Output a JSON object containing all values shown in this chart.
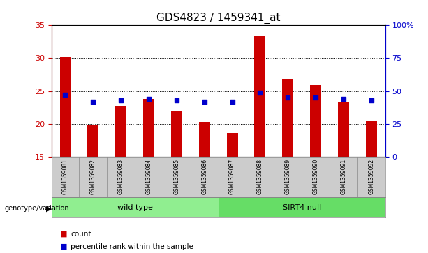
{
  "title": "GDS4823 / 1459341_at",
  "samples": [
    "GSM1359081",
    "GSM1359082",
    "GSM1359083",
    "GSM1359084",
    "GSM1359085",
    "GSM1359086",
    "GSM1359087",
    "GSM1359088",
    "GSM1359089",
    "GSM1359090",
    "GSM1359091",
    "GSM1359092"
  ],
  "count_values": [
    30.2,
    19.9,
    22.7,
    23.8,
    22.0,
    20.3,
    18.6,
    33.4,
    26.9,
    25.9,
    23.4,
    20.5
  ],
  "percentile_values": [
    47,
    42,
    43,
    44,
    43,
    42,
    42,
    49,
    45,
    45,
    44,
    43
  ],
  "y_min": 15,
  "y_max": 35,
  "y_ticks": [
    15,
    20,
    25,
    30,
    35
  ],
  "y2_ticks": [
    0,
    25,
    50,
    75,
    100
  ],
  "bar_color": "#CC0000",
  "dot_color": "#0000CC",
  "bar_bottom": 15,
  "bg_color": "#FFFFFF",
  "plot_bg_color": "#FFFFFF",
  "tick_area_bg": "#CCCCCC",
  "legend_count_label": "count",
  "legend_pct_label": "percentile rank within the sample",
  "ylabel_left_color": "#CC0000",
  "ylabel_right_color": "#0000CC",
  "genotype_label": "genotype/variation",
  "group1_label": "wild type",
  "group2_label": "SIRT4 null",
  "group1_color": "#90EE90",
  "group2_color": "#66DD66",
  "grid_vals": [
    20,
    25,
    30
  ]
}
